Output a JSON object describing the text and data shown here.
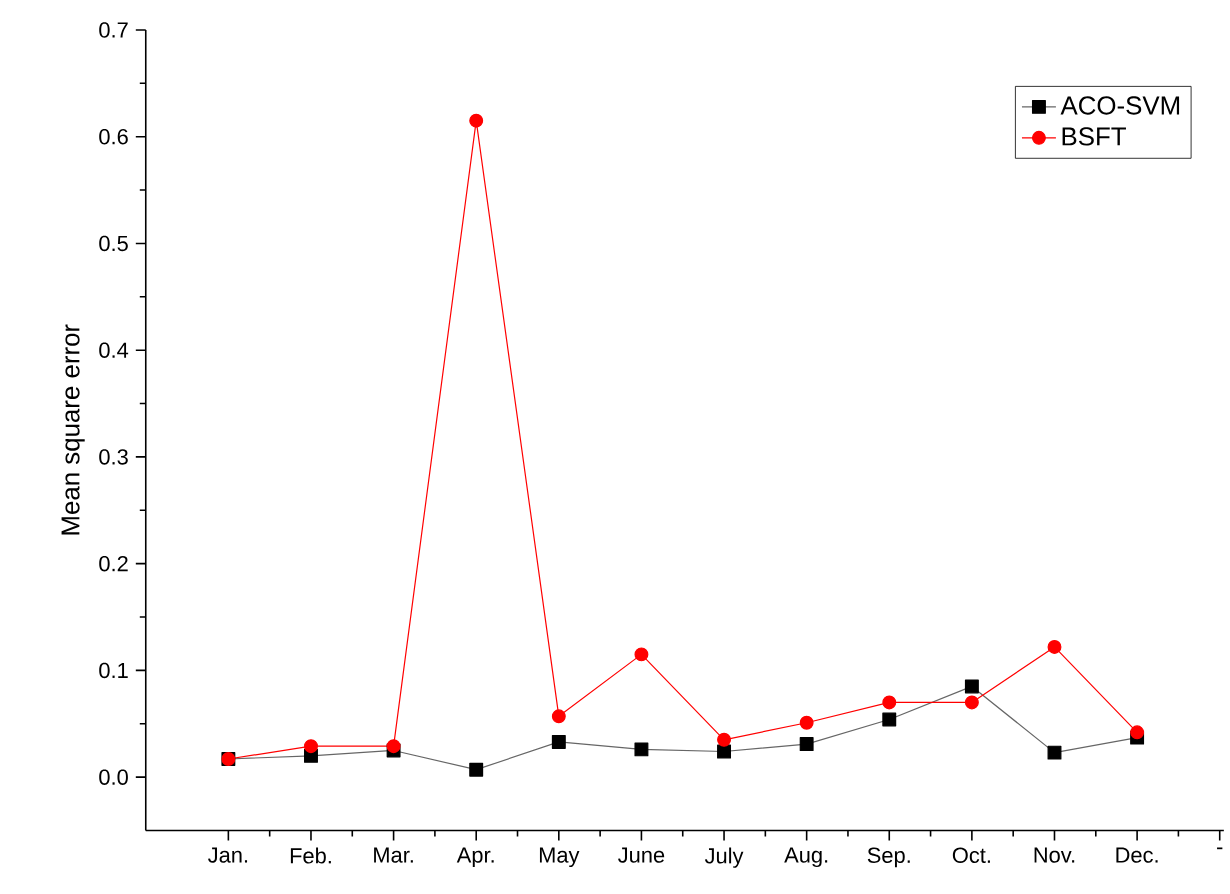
{
  "chart_data": {
    "type": "line",
    "ylabel": "Mean square error",
    "categories": [
      "Jan.",
      "Feb.",
      "Mar.",
      "Apr.",
      "May",
      "June",
      "July",
      "Aug.",
      "Sep.",
      "Oct.",
      "Nov.",
      "Dec.",
      "-"
    ],
    "series": [
      {
        "name": "ACO-SVM",
        "color": "#000000",
        "marker": "square",
        "values": [
          0.017,
          0.02,
          0.025,
          0.007,
          0.033,
          0.026,
          0.024,
          0.031,
          0.054,
          0.085,
          0.023,
          0.037,
          null
        ]
      },
      {
        "name": "BSFT",
        "color": "#ff0000",
        "marker": "circle",
        "values": [
          0.017,
          0.029,
          0.029,
          0.615,
          0.057,
          0.115,
          0.035,
          0.051,
          0.07,
          0.07,
          0.122,
          0.042,
          null
        ]
      }
    ],
    "ylim": [
      -0.05,
      0.7
    ],
    "yticks": [
      {
        "value": 0,
        "label": "0.0"
      },
      0.1,
      0.2,
      0.3,
      0.4,
      0.5,
      0.6,
      0.7
    ],
    "grid": false,
    "legend": "top right",
    "line_style": "solid"
  }
}
